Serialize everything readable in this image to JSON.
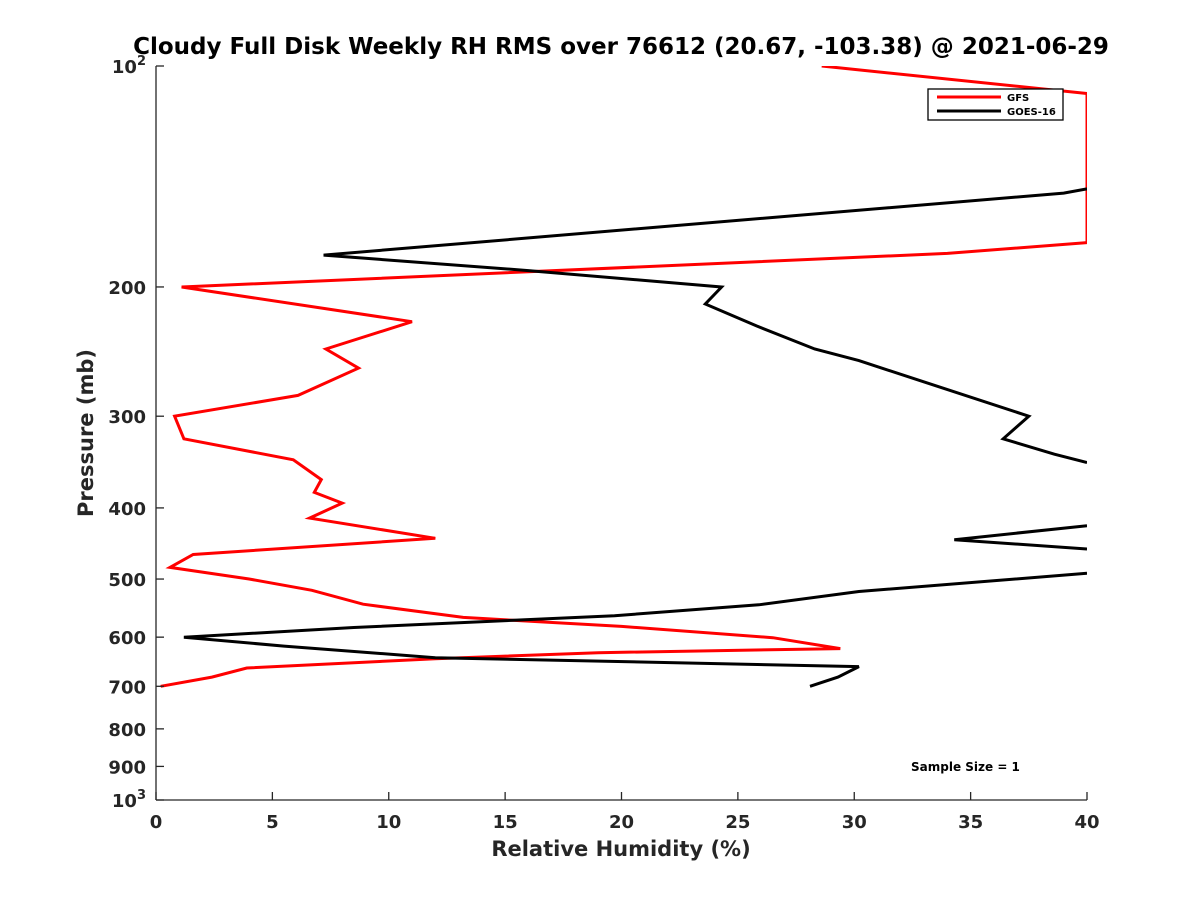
{
  "chart_data": {
    "type": "line",
    "title": "Cloudy Full Disk Weekly RH RMS over 76612 (20.67, -103.38) @ 2021-06-29",
    "xlabel": "Relative Humidity (%)",
    "ylabel": "Pressure (mb)",
    "xlim": [
      0,
      40
    ],
    "ylim": [
      100,
      1000
    ],
    "yscale": "log",
    "yreversed": true,
    "grid": false,
    "legend_position": "top-right",
    "x_ticks": [
      "0",
      "5",
      "10",
      "15",
      "20",
      "25",
      "30",
      "35",
      "40"
    ],
    "x_tick_values": [
      0,
      5,
      10,
      15,
      20,
      25,
      30,
      35,
      40
    ],
    "y_ticks": [
      {
        "value": 100,
        "base": "10",
        "exp": "2"
      },
      {
        "value": 200,
        "label": "200"
      },
      {
        "value": 300,
        "label": "300"
      },
      {
        "value": 400,
        "label": "400"
      },
      {
        "value": 500,
        "label": "500"
      },
      {
        "value": 600,
        "label": "600"
      },
      {
        "value": 700,
        "label": "700"
      },
      {
        "value": 800,
        "label": "800"
      },
      {
        "value": 900,
        "label": "900"
      },
      {
        "value": 1000,
        "base": "10",
        "exp": "3"
      }
    ],
    "series": [
      {
        "name": "GFS",
        "color": "#ff0000",
        "points": [
          [
            28.6,
            100
          ],
          [
            40,
            109
          ],
          [
            40,
            174
          ],
          [
            34,
            180
          ],
          [
            1.1,
            200
          ],
          [
            11,
            223
          ],
          [
            7.3,
            243
          ],
          [
            8.7,
            258
          ],
          [
            6.1,
            281
          ],
          [
            0.8,
            300
          ],
          [
            1.2,
            322
          ],
          [
            5.9,
            344
          ],
          [
            7.1,
            366
          ],
          [
            6.8,
            381
          ],
          [
            8,
            394
          ],
          [
            6.6,
            413
          ],
          [
            12,
            440
          ],
          [
            1.6,
            463
          ],
          [
            0.6,
            482
          ],
          [
            4,
            500
          ],
          [
            6.7,
            518
          ],
          [
            8.9,
            541
          ],
          [
            13.2,
            564
          ],
          [
            20,
            580
          ],
          [
            26.5,
            601
          ],
          [
            29.4,
            622
          ],
          [
            19,
            630
          ],
          [
            12,
            642
          ],
          [
            3.9,
            661
          ],
          [
            2.4,
            680
          ],
          [
            0.2,
            700
          ]
        ]
      },
      {
        "name": "GOES-16",
        "color": "#000000",
        "points": [
          [
            40,
            147
          ],
          [
            39,
            149
          ],
          [
            7.2,
            181
          ],
          [
            16,
            190
          ],
          [
            24.3,
            200
          ],
          [
            23.6,
            211
          ],
          [
            25.8,
            226
          ],
          [
            28.3,
            243
          ],
          [
            30.2,
            252
          ],
          [
            37.5,
            300
          ],
          [
            36.4,
            322
          ],
          [
            38.6,
            338
          ],
          [
            40,
            347
          ],
          [
            null,
            null
          ],
          [
            40,
            423
          ],
          [
            34.3,
            442
          ],
          [
            40,
            455
          ],
          [
            null,
            null
          ],
          [
            40,
            491
          ],
          [
            30.2,
            520
          ],
          [
            25.9,
            542
          ],
          [
            19.7,
            561
          ],
          [
            8.5,
            582
          ],
          [
            1.2,
            600
          ],
          [
            5.5,
            617
          ],
          [
            12,
            640
          ],
          [
            30.2,
            658
          ],
          [
            29.3,
            680
          ],
          [
            28.1,
            700
          ]
        ]
      }
    ],
    "legend": [
      "GFS",
      "GOES-16"
    ],
    "annotation": "Sample Size = 1"
  }
}
